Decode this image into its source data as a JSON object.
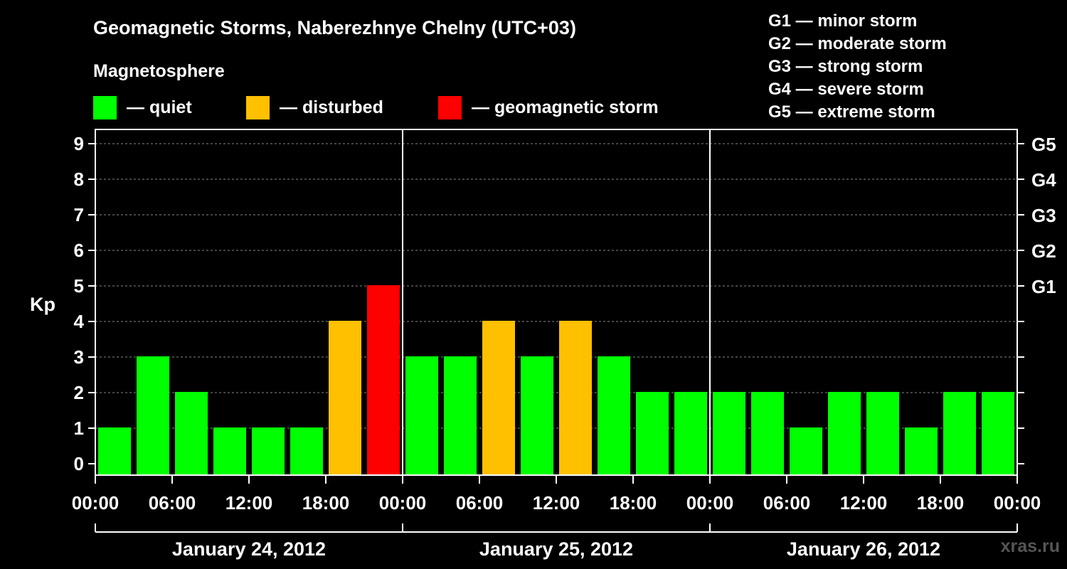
{
  "header": {
    "title": "Geomagnetic Storms, Naberezhnye Chelny (UTC+03)",
    "subtitle": "Magnetosphere"
  },
  "legend": [
    {
      "label": "— quiet",
      "color": "#00ff00"
    },
    {
      "label": "— disturbed",
      "color": "#ffc000"
    },
    {
      "label": "— geomagnetic storm",
      "color": "#ff0000"
    }
  ],
  "storm_scale": [
    "G1 — minor storm",
    "G2 — moderate storm",
    "G3 — strong storm",
    "G4 — severe storm",
    "G5 — extreme storm"
  ],
  "credit": "xras.ru",
  "chart_data": {
    "type": "bar",
    "title": "Geomagnetic Storms, Naberezhnye Chelny (UTC+03)",
    "ylabel": "Kp",
    "ylim": [
      0,
      9
    ],
    "y_ticks": [
      "0",
      "1",
      "2",
      "3",
      "4",
      "5",
      "6",
      "7",
      "8",
      "9"
    ],
    "right_ticks": [
      {
        "kp": 5,
        "label": "G1"
      },
      {
        "kp": 6,
        "label": "G2"
      },
      {
        "kp": 7,
        "label": "G3"
      },
      {
        "kp": 8,
        "label": "G4"
      },
      {
        "kp": 9,
        "label": "G5"
      }
    ],
    "x_tick_labels": [
      "00:00",
      "06:00",
      "12:00",
      "18:00",
      "00:00",
      "06:00",
      "12:00",
      "18:00",
      "00:00",
      "06:00",
      "12:00",
      "18:00",
      "00:00"
    ],
    "days": [
      "January 24, 2012",
      "January 25, 2012",
      "January 26, 2012"
    ],
    "interval_hours": 3,
    "values": [
      1,
      3,
      2,
      1,
      1,
      1,
      4,
      5,
      3,
      3,
      4,
      3,
      4,
      3,
      2,
      2,
      2,
      2,
      1,
      2,
      2,
      1,
      2,
      2
    ],
    "colors": {
      "quiet": "#00ff00",
      "disturbed": "#ffc000",
      "storm": "#ff0000"
    },
    "thresholds": {
      "disturbed": 4,
      "storm": 5
    },
    "grid": true
  }
}
